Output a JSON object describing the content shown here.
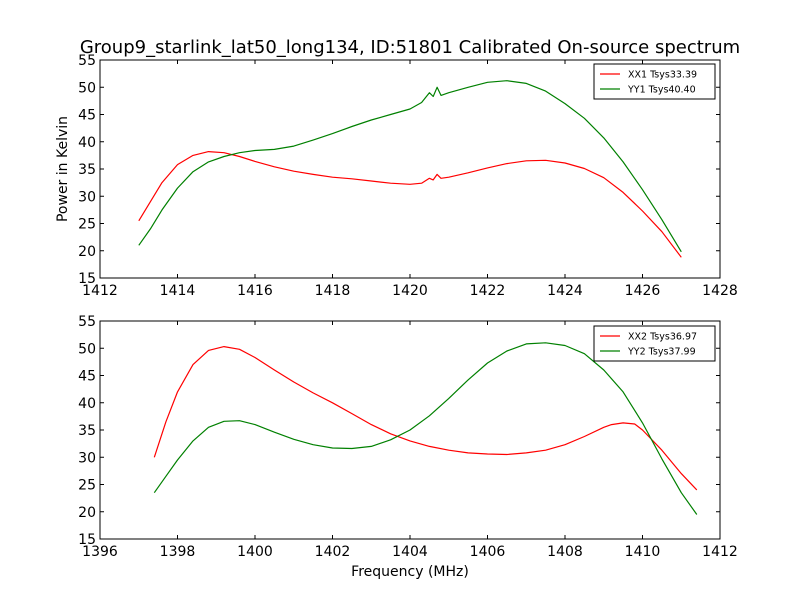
{
  "title": "Group9_starlink_lat50_long134, ID:51801 Calibrated On-source spectrum",
  "chart_data": [
    {
      "type": "line",
      "ylabel": "Power in Kelvin",
      "xlabel": "",
      "xlim": [
        1412,
        1428
      ],
      "ylim": [
        15,
        55
      ],
      "xticks": [
        "1412",
        "1414",
        "1416",
        "1418",
        "1420",
        "1422",
        "1424",
        "1426",
        "1428"
      ],
      "yticks": [
        "15",
        "20",
        "25",
        "30",
        "35",
        "40",
        "45",
        "50",
        "55"
      ],
      "legend_position": "top-right",
      "series": [
        {
          "name": "XX1 Tsys33.39",
          "color": "#ff0000",
          "points": [
            [
              1413.0,
              25.5
            ],
            [
              1413.3,
              29.0
            ],
            [
              1413.6,
              32.5
            ],
            [
              1414.0,
              35.8
            ],
            [
              1414.4,
              37.5
            ],
            [
              1414.8,
              38.2
            ],
            [
              1415.2,
              38.0
            ],
            [
              1415.6,
              37.3
            ],
            [
              1416.0,
              36.4
            ],
            [
              1416.5,
              35.4
            ],
            [
              1417.0,
              34.6
            ],
            [
              1417.5,
              34.0
            ],
            [
              1418.0,
              33.5
            ],
            [
              1418.5,
              33.2
            ],
            [
              1419.0,
              32.8
            ],
            [
              1419.5,
              32.4
            ],
            [
              1420.0,
              32.2
            ],
            [
              1420.3,
              32.4
            ],
            [
              1420.5,
              33.3
            ],
            [
              1420.6,
              33.0
            ],
            [
              1420.7,
              34.0
            ],
            [
              1420.8,
              33.3
            ],
            [
              1421.0,
              33.5
            ],
            [
              1421.5,
              34.3
            ],
            [
              1422.0,
              35.2
            ],
            [
              1422.5,
              36.0
            ],
            [
              1423.0,
              36.5
            ],
            [
              1423.5,
              36.6
            ],
            [
              1424.0,
              36.1
            ],
            [
              1424.5,
              35.1
            ],
            [
              1425.0,
              33.4
            ],
            [
              1425.5,
              30.7
            ],
            [
              1426.0,
              27.3
            ],
            [
              1426.5,
              23.5
            ],
            [
              1427.0,
              18.8
            ]
          ]
        },
        {
          "name": "YY1 Tsys40.40",
          "color": "#008000",
          "points": [
            [
              1413.0,
              21.0
            ],
            [
              1413.3,
              24.0
            ],
            [
              1413.6,
              27.5
            ],
            [
              1414.0,
              31.5
            ],
            [
              1414.4,
              34.5
            ],
            [
              1414.8,
              36.3
            ],
            [
              1415.2,
              37.3
            ],
            [
              1415.6,
              38.0
            ],
            [
              1416.0,
              38.4
            ],
            [
              1416.5,
              38.6
            ],
            [
              1417.0,
              39.2
            ],
            [
              1417.5,
              40.3
            ],
            [
              1418.0,
              41.5
            ],
            [
              1418.5,
              42.8
            ],
            [
              1419.0,
              44.0
            ],
            [
              1419.5,
              45.0
            ],
            [
              1420.0,
              46.0
            ],
            [
              1420.3,
              47.2
            ],
            [
              1420.5,
              49.0
            ],
            [
              1420.6,
              48.3
            ],
            [
              1420.7,
              50.0
            ],
            [
              1420.8,
              48.5
            ],
            [
              1421.0,
              49.0
            ],
            [
              1421.5,
              50.0
            ],
            [
              1422.0,
              50.9
            ],
            [
              1422.5,
              51.2
            ],
            [
              1423.0,
              50.7
            ],
            [
              1423.5,
              49.3
            ],
            [
              1424.0,
              47.0
            ],
            [
              1424.5,
              44.3
            ],
            [
              1425.0,
              40.7
            ],
            [
              1425.5,
              36.3
            ],
            [
              1426.0,
              31.2
            ],
            [
              1426.5,
              25.7
            ],
            [
              1427.0,
              19.8
            ]
          ]
        }
      ]
    },
    {
      "type": "line",
      "ylabel": "",
      "xlabel": "Frequency (MHz)",
      "xlim": [
        1396,
        1412
      ],
      "ylim": [
        15,
        55
      ],
      "xticks": [
        "1396",
        "1398",
        "1400",
        "1402",
        "1404",
        "1406",
        "1408",
        "1410",
        "1412"
      ],
      "yticks": [
        "15",
        "20",
        "25",
        "30",
        "35",
        "40",
        "45",
        "50",
        "55"
      ],
      "legend_position": "top-right",
      "series": [
        {
          "name": "XX2 Tsys36.97",
          "color": "#ff0000",
          "points": [
            [
              1397.4,
              30.0
            ],
            [
              1397.7,
              36.5
            ],
            [
              1398.0,
              42.0
            ],
            [
              1398.4,
              47.0
            ],
            [
              1398.8,
              49.6
            ],
            [
              1399.2,
              50.3
            ],
            [
              1399.6,
              49.8
            ],
            [
              1400.0,
              48.3
            ],
            [
              1400.5,
              46.0
            ],
            [
              1401.0,
              43.8
            ],
            [
              1401.5,
              41.8
            ],
            [
              1402.0,
              40.0
            ],
            [
              1402.5,
              38.0
            ],
            [
              1403.0,
              36.0
            ],
            [
              1403.5,
              34.3
            ],
            [
              1404.0,
              33.0
            ],
            [
              1404.5,
              32.0
            ],
            [
              1405.0,
              31.3
            ],
            [
              1405.5,
              30.8
            ],
            [
              1406.0,
              30.6
            ],
            [
              1406.5,
              30.5
            ],
            [
              1407.0,
              30.8
            ],
            [
              1407.5,
              31.3
            ],
            [
              1408.0,
              32.3
            ],
            [
              1408.5,
              33.8
            ],
            [
              1409.0,
              35.5
            ],
            [
              1409.2,
              36.0
            ],
            [
              1409.5,
              36.3
            ],
            [
              1409.8,
              36.1
            ],
            [
              1410.0,
              35.0
            ],
            [
              1410.5,
              31.3
            ],
            [
              1411.0,
              27.0
            ],
            [
              1411.4,
              24.0
            ]
          ]
        },
        {
          "name": "YY2 Tsys37.99",
          "color": "#008000",
          "points": [
            [
              1397.4,
              23.5
            ],
            [
              1397.7,
              26.5
            ],
            [
              1398.0,
              29.5
            ],
            [
              1398.4,
              33.0
            ],
            [
              1398.8,
              35.5
            ],
            [
              1399.2,
              36.6
            ],
            [
              1399.6,
              36.7
            ],
            [
              1400.0,
              36.0
            ],
            [
              1400.5,
              34.6
            ],
            [
              1401.0,
              33.3
            ],
            [
              1401.5,
              32.3
            ],
            [
              1402.0,
              31.7
            ],
            [
              1402.5,
              31.6
            ],
            [
              1403.0,
              32.0
            ],
            [
              1403.5,
              33.2
            ],
            [
              1404.0,
              35.0
            ],
            [
              1404.5,
              37.6
            ],
            [
              1405.0,
              40.8
            ],
            [
              1405.5,
              44.2
            ],
            [
              1406.0,
              47.3
            ],
            [
              1406.5,
              49.5
            ],
            [
              1407.0,
              50.8
            ],
            [
              1407.5,
              51.0
            ],
            [
              1408.0,
              50.5
            ],
            [
              1408.5,
              49.0
            ],
            [
              1409.0,
              46.0
            ],
            [
              1409.5,
              42.0
            ],
            [
              1410.0,
              36.3
            ],
            [
              1410.5,
              29.7
            ],
            [
              1411.0,
              23.5
            ],
            [
              1411.4,
              19.5
            ]
          ]
        }
      ]
    }
  ]
}
